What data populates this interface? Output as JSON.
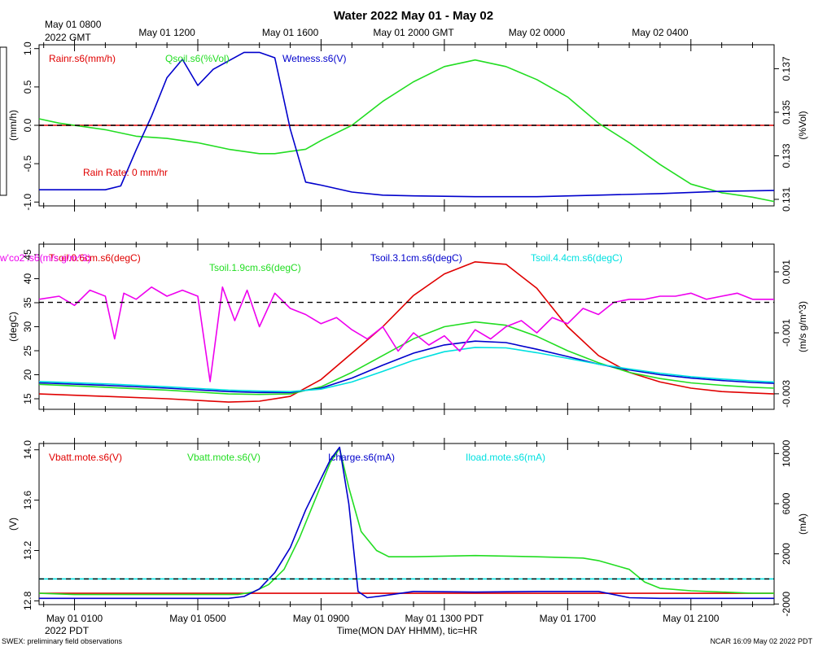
{
  "title": "Water 2022 May 01 - May 02",
  "top_axis": {
    "first_label_line1": "May 01 0800",
    "first_label_line2": "2022 GMT",
    "labels": [
      "May 01 1200",
      "May 01 1600",
      "May 01 2000 GMT",
      "May 02 0000",
      "May 02 0400"
    ]
  },
  "bottom_axis": {
    "labels": [
      "May 01 0100",
      "May 01 0500",
      "May 01 0900",
      "May 01 1300 PDT",
      "May 01 1700",
      "May 01 2100"
    ],
    "sub_label": "2022 PDT",
    "xlabel": "Time(MON DAY HHMM), tic=HR"
  },
  "footer": {
    "left": "SWEX: preliminary field observations",
    "right": "NCAR 16:09 May 02 2022 PDT"
  },
  "colors": {
    "red": "#e00000",
    "green": "#22dd22",
    "blue": "#0000cc",
    "cyan": "#00e0e0",
    "magenta": "#ee00ee",
    "navy": "#000080"
  },
  "chart_data": [
    {
      "type": "line",
      "panel": "top",
      "x_unit": "hours since 2022-05-01 00:00 PDT",
      "xlim": [
        -0.15,
        23.7
      ],
      "left_axis": {
        "label": "(mm/h)",
        "ylim": [
          -1.05,
          1.05
        ],
        "ticks": [
          -1.0,
          -0.5,
          0.0,
          0.5,
          1.0
        ],
        "tick_labels": [
          "-1.0",
          "-0.5",
          "0.0",
          "0.5",
          "1.0"
        ]
      },
      "right_axis": {
        "label": "(%Vol)",
        "ylim": [
          0.1307,
          0.1381
        ],
        "ticks": [
          0.131,
          0.133,
          0.135,
          0.137
        ],
        "tick_labels": [
          "0.131",
          "0.133",
          "0.135",
          "0.137"
        ]
      },
      "reference_line": 0.0,
      "annotation": "Rain Rate: 0 mm/hr",
      "series": [
        {
          "name": "Rainr.s6(mm/h)",
          "axis": "left",
          "color": "red",
          "x": [
            -0.15,
            23.7
          ],
          "y": [
            0.0,
            0.0
          ]
        },
        {
          "name": "Qsoil.s6(%Vol)",
          "axis": "right",
          "color": "green",
          "x": [
            -0.15,
            0.5,
            2,
            3,
            4,
            5,
            6,
            7,
            7.5,
            8,
            8.5,
            9,
            10,
            11,
            12,
            13,
            14,
            15,
            16,
            17,
            18,
            19,
            20,
            21,
            22,
            23,
            23.7
          ],
          "y": [
            0.1347,
            0.1345,
            0.1342,
            0.1339,
            0.1338,
            0.1336,
            0.1333,
            0.1331,
            0.1331,
            0.1332,
            0.1333,
            0.1337,
            0.1344,
            0.1355,
            0.1364,
            0.1371,
            0.1374,
            0.1371,
            0.1365,
            0.1357,
            0.1345,
            0.1336,
            0.1326,
            0.1317,
            0.1313,
            0.1311,
            0.1309
          ]
        },
        {
          "name": "Wetness.s6(V)",
          "axis": "left",
          "color": "blue",
          "x": [
            -0.15,
            2,
            2.5,
            3,
            3.5,
            4,
            4.5,
            5,
            5.5,
            6,
            6.5,
            7,
            7.5,
            8,
            8.5,
            9,
            10,
            11,
            12,
            14,
            16,
            18,
            20,
            22,
            23.7
          ],
          "y": [
            -0.84,
            -0.84,
            -0.79,
            -0.32,
            0.12,
            0.62,
            0.86,
            0.52,
            0.73,
            0.84,
            0.95,
            0.95,
            0.88,
            -0.05,
            -0.74,
            -0.78,
            -0.87,
            -0.91,
            -0.92,
            -0.93,
            -0.93,
            -0.91,
            -0.89,
            -0.86,
            -0.85
          ]
        }
      ]
    },
    {
      "type": "line",
      "panel": "middle",
      "x_unit": "hours since 2022-05-01 00:00 PDT",
      "xlim": [
        -0.15,
        23.7
      ],
      "left_axis": {
        "label": "(degC)",
        "ylim": [
          12.8,
          47.2
        ],
        "ticks": [
          15,
          20,
          25,
          30,
          35,
          40,
          45
        ],
        "tick_labels": [
          "15",
          "20",
          "25",
          "30",
          "35",
          "40",
          "45"
        ]
      },
      "right_axis": {
        "label": "(m/s g/m^3)",
        "ylim": [
          -0.00351,
          0.00191
        ],
        "ticks": [
          -0.003,
          -0.001,
          0.001
        ],
        "tick_labels": [
          "-0.003",
          "-0.001",
          "0.001"
        ]
      },
      "reference_line_right_axis": 0.0,
      "series": [
        {
          "name": "Tsoil.0.6cm.s6(degC)",
          "axis": "left",
          "color": "red",
          "x": [
            -0.15,
            2,
            4,
            6,
            7,
            8,
            9,
            10,
            11,
            12,
            13,
            14,
            15,
            16,
            17,
            18,
            19,
            20,
            21,
            22,
            23,
            23.7
          ],
          "y": [
            16.0,
            15.5,
            15.0,
            14.3,
            14.5,
            15.5,
            19.0,
            24.5,
            30.0,
            36.5,
            41.0,
            43.5,
            43.0,
            38.0,
            30.0,
            24.0,
            20.5,
            18.5,
            17.2,
            16.5,
            16.2,
            16.0
          ]
        },
        {
          "name": "Tsoil.1.9cm.s6(degC)",
          "axis": "left",
          "color": "green",
          "x": [
            -0.15,
            2,
            4,
            6,
            7,
            8,
            9,
            10,
            11,
            12,
            13,
            14,
            15,
            16,
            17,
            18,
            19,
            20,
            21,
            22,
            23,
            23.7
          ],
          "y": [
            18.0,
            17.4,
            16.8,
            16.0,
            15.9,
            16.0,
            17.5,
            20.5,
            24.0,
            27.5,
            30.0,
            31.0,
            30.3,
            28.0,
            25.0,
            22.5,
            20.5,
            19.2,
            18.3,
            17.8,
            17.4,
            17.2
          ]
        },
        {
          "name": "Tsoil.3.1cm.s6(degC)",
          "axis": "left",
          "color": "blue",
          "x": [
            -0.15,
            2,
            4,
            6,
            7,
            8,
            9,
            10,
            11,
            12,
            13,
            14,
            15,
            16,
            17,
            18,
            19,
            20,
            21,
            22,
            23,
            23.7
          ],
          "y": [
            18.3,
            17.8,
            17.2,
            16.5,
            16.3,
            16.3,
            17.2,
            19.3,
            22.0,
            24.5,
            26.2,
            27.0,
            26.7,
            25.3,
            23.8,
            22.2,
            21.0,
            20.0,
            19.3,
            18.8,
            18.4,
            18.2
          ]
        },
        {
          "name": "Tsoil.4.4cm.s6(degC)",
          "axis": "left",
          "color": "cyan",
          "x": [
            -0.15,
            2,
            4,
            6,
            7,
            8,
            9,
            10,
            11,
            12,
            13,
            14,
            15,
            16,
            17,
            18,
            19,
            20,
            21,
            22,
            23,
            23.7
          ],
          "y": [
            18.6,
            18.1,
            17.5,
            16.8,
            16.6,
            16.5,
            17.0,
            18.5,
            20.7,
            23.0,
            24.8,
            25.7,
            25.6,
            24.6,
            23.4,
            22.2,
            21.2,
            20.3,
            19.6,
            19.1,
            18.7,
            18.5
          ]
        },
        {
          "name": "w'co2'.s6(m/s g/m^3)",
          "axis": "right",
          "color": "magenta",
          "x": [
            -0.15,
            0.5,
            1,
            1.5,
            2,
            2.3,
            2.6,
            3,
            3.5,
            4,
            4.5,
            5,
            5.4,
            5.8,
            6.2,
            6.6,
            7.0,
            7.5,
            8,
            8.5,
            9,
            9.5,
            10,
            10.5,
            11,
            11.5,
            12,
            12.5,
            13,
            13.5,
            14,
            14.5,
            15,
            15.5,
            16,
            16.5,
            17,
            17.5,
            18,
            18.5,
            19,
            19.5,
            20,
            20.5,
            21,
            21.5,
            22,
            22.5,
            23,
            23.7
          ],
          "y": [
            0.0001,
            0.0002,
            -0.0001,
            0.0004,
            0.0002,
            -0.0012,
            0.0003,
            0.0001,
            0.0005,
            0.0002,
            0.0004,
            0.0002,
            -0.0026,
            0.0005,
            -0.0006,
            0.0004,
            -0.0008,
            0.0003,
            -0.0002,
            -0.0004,
            -0.0007,
            -0.0005,
            -0.0009,
            -0.0012,
            -0.0008,
            -0.0016,
            -0.001,
            -0.0014,
            -0.0011,
            -0.0016,
            -0.0009,
            -0.0012,
            -0.0008,
            -0.0006,
            -0.001,
            -0.0005,
            -0.0007,
            -0.0002,
            -0.0004,
            0.0,
            0.0001,
            0.0001,
            0.0002,
            0.0002,
            0.0003,
            0.0001,
            0.0002,
            0.0003,
            0.0001,
            0.0001
          ]
        }
      ]
    },
    {
      "type": "line",
      "panel": "bottom",
      "x_unit": "hours since 2022-05-01 00:00 PDT",
      "xlim": [
        -0.15,
        23.7
      ],
      "left_axis": {
        "label": "(V)",
        "ylim": [
          12.77,
          14.05
        ],
        "ticks": [
          12.8,
          13.2,
          13.6,
          14.0
        ],
        "tick_labels": [
          "12.8",
          "13.2",
          "13.6",
          "14.0"
        ]
      },
      "right_axis": {
        "label": "(mA)",
        "ylim": [
          -2050,
          10800
        ],
        "ticks": [
          -2000,
          2000,
          6000,
          10000
        ],
        "tick_labels": [
          "-2000",
          "2000",
          "6000",
          "10000"
        ]
      },
      "reference_line_right_axis": 0,
      "series": [
        {
          "name": "Vbatt.mote.s6(V)",
          "axis": "left",
          "color": "red",
          "x": [
            -0.15,
            23.7
          ],
          "y": [
            12.86,
            12.86
          ],
          "hidden_behind": "Vbatt.mote.s6(V) green"
        },
        {
          "name": "Vbatt.mote.s6(V)",
          "axis": "left",
          "color": "green",
          "x": [
            -0.15,
            1,
            3,
            5,
            6.3,
            6.8,
            7.3,
            7.8,
            8.3,
            8.8,
            9.3,
            9.6,
            9.9,
            10.3,
            10.8,
            11.2,
            12,
            14,
            16,
            17.5,
            18,
            19,
            19.5,
            20,
            21,
            22,
            23,
            23.7
          ],
          "y": [
            12.86,
            12.85,
            12.85,
            12.85,
            12.85,
            12.87,
            12.93,
            13.05,
            13.3,
            13.6,
            13.9,
            14.01,
            13.7,
            13.35,
            13.2,
            13.15,
            13.15,
            13.16,
            13.15,
            13.14,
            13.12,
            13.05,
            12.95,
            12.9,
            12.88,
            12.87,
            12.86,
            12.86
          ]
        },
        {
          "name": "Icharge.s6(mA)",
          "axis": "right",
          "color": "blue",
          "x": [
            -0.15,
            2,
            4,
            6,
            6.5,
            7,
            7.5,
            8,
            8.5,
            9,
            9.3,
            9.6,
            9.9,
            10.2,
            10.5,
            11,
            12,
            14,
            16,
            18,
            19,
            20,
            22,
            23.7
          ],
          "y": [
            -1550,
            -1550,
            -1550,
            -1550,
            -1400,
            -800,
            500,
            2500,
            5500,
            8000,
            9500,
            10500,
            6000,
            -1000,
            -1500,
            -1350,
            -1000,
            -1050,
            -1000,
            -1000,
            -1500,
            -1550,
            -1550,
            -1550
          ]
        },
        {
          "name": "Iload.mote.s6(mA)",
          "axis": "right",
          "color": "cyan",
          "x": [
            -0.15,
            23.7
          ],
          "y": [
            0,
            0
          ],
          "hidden_behind": "reference line"
        }
      ]
    }
  ]
}
